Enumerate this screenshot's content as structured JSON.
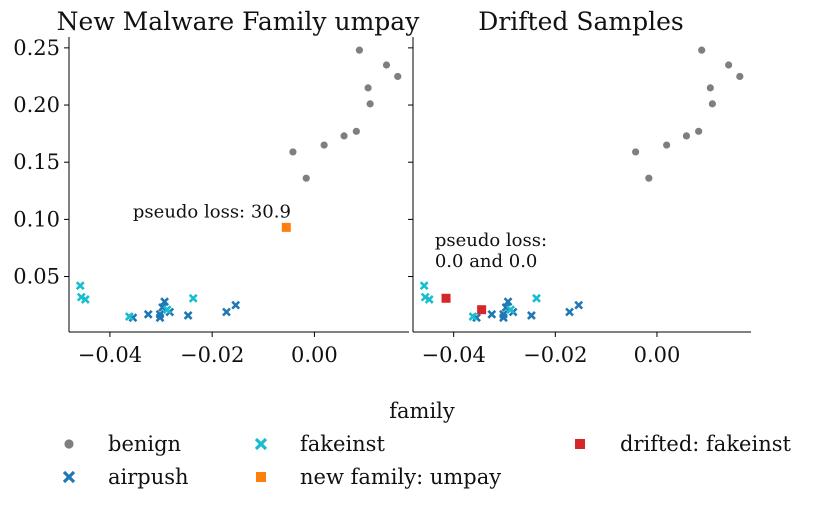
{
  "chart_data": [
    {
      "type": "scatter",
      "title": "New Malware Family umpay",
      "xlabel": "",
      "ylabel": "",
      "xlim": [
        -0.048,
        0.0185
      ],
      "ylim": [
        0.0015,
        0.2595
      ],
      "xticks": [
        "−0.04",
        "−0.02",
        "0.00"
      ],
      "xtick_values": [
        -0.04,
        -0.02,
        0.0
      ],
      "yticks": [
        "0.05",
        "0.10",
        "0.15",
        "0.20",
        "0.25"
      ],
      "ytick_values": [
        0.05,
        0.1,
        0.15,
        0.2,
        0.25
      ],
      "annotation": {
        "lines": [
          "pseudo loss: 30.9"
        ],
        "x": -0.0355,
        "y": 0.1015
      },
      "series": [
        {
          "name": "benign",
          "points": [
            [
              0.0088,
              0.248
            ],
            [
              0.0141,
              0.235
            ],
            [
              0.0163,
              0.225
            ],
            [
              0.0105,
              0.215
            ],
            [
              0.0109,
              0.201
            ],
            [
              0.0082,
              0.177
            ],
            [
              0.0058,
              0.173
            ],
            [
              0.0019,
              0.165
            ],
            [
              -0.0042,
              0.159
            ],
            [
              -0.0016,
              0.136
            ]
          ]
        },
        {
          "name": "airpush",
          "points": [
            [
              -0.0355,
              0.014
            ],
            [
              -0.0325,
              0.017
            ],
            [
              -0.0302,
              0.014
            ],
            [
              -0.0302,
              0.017
            ],
            [
              -0.0297,
              0.023
            ],
            [
              -0.0293,
              0.028
            ],
            [
              -0.0283,
              0.019
            ],
            [
              -0.0247,
              0.016
            ],
            [
              -0.0172,
              0.019
            ],
            [
              -0.0154,
              0.025
            ]
          ]
        },
        {
          "name": "fakeinst",
          "points": [
            [
              -0.0458,
              0.042
            ],
            [
              -0.0456,
              0.032
            ],
            [
              -0.0448,
              0.03
            ],
            [
              -0.0362,
              0.015
            ],
            [
              -0.0288,
              0.021
            ],
            [
              -0.0237,
              0.031
            ]
          ]
        },
        {
          "name": "new family: umpay",
          "points": [
            [
              -0.0055,
              0.093
            ]
          ]
        }
      ]
    },
    {
      "type": "scatter",
      "title": "Drifted Samples",
      "xlabel": "",
      "ylabel": "",
      "xlim": [
        -0.048,
        0.0185
      ],
      "ylim": [
        0.0015,
        0.2595
      ],
      "xticks": [
        "−0.04",
        "−0.02",
        "0.00"
      ],
      "xtick_values": [
        -0.04,
        -0.02,
        0.0
      ],
      "yticks": [],
      "ytick_values": [
        0.05,
        0.1,
        0.15,
        0.2,
        0.25
      ],
      "annotation": {
        "lines": [
          "pseudo loss:",
          "0.0 and 0.0"
        ],
        "x": -0.0437,
        "y": 0.0765
      },
      "series": [
        {
          "name": "benign",
          "points": [
            [
              0.0088,
              0.248
            ],
            [
              0.0141,
              0.235
            ],
            [
              0.0163,
              0.225
            ],
            [
              0.0105,
              0.215
            ],
            [
              0.0109,
              0.201
            ],
            [
              0.0082,
              0.177
            ],
            [
              0.0058,
              0.173
            ],
            [
              0.0019,
              0.165
            ],
            [
              -0.0042,
              0.159
            ],
            [
              -0.0016,
              0.136
            ]
          ]
        },
        {
          "name": "airpush",
          "points": [
            [
              -0.0355,
              0.014
            ],
            [
              -0.0325,
              0.017
            ],
            [
              -0.0302,
              0.014
            ],
            [
              -0.0302,
              0.017
            ],
            [
              -0.0297,
              0.023
            ],
            [
              -0.0293,
              0.028
            ],
            [
              -0.0283,
              0.019
            ],
            [
              -0.0247,
              0.016
            ],
            [
              -0.0172,
              0.019
            ],
            [
              -0.0154,
              0.025
            ]
          ]
        },
        {
          "name": "fakeinst",
          "points": [
            [
              -0.0458,
              0.042
            ],
            [
              -0.0456,
              0.032
            ],
            [
              -0.0448,
              0.03
            ],
            [
              -0.0362,
              0.015
            ],
            [
              -0.0288,
              0.021
            ],
            [
              -0.0237,
              0.031
            ]
          ]
        },
        {
          "name": "drifted: fakeinst",
          "points": [
            [
              -0.0415,
              0.031
            ],
            [
              -0.0345,
              0.021
            ]
          ]
        }
      ]
    }
  ],
  "legend": {
    "title": "family",
    "entries": [
      {
        "label": "benign",
        "marker": "circle",
        "color": "#7f7f7f"
      },
      {
        "label": "airpush",
        "marker": "x",
        "color": "#1f77b4"
      },
      {
        "label": "fakeinst",
        "marker": "x",
        "color": "#17becf"
      },
      {
        "label": "new family: umpay",
        "marker": "square",
        "color": "#ff7f0e"
      },
      {
        "label": "drifted: fakeinst",
        "marker": "square",
        "color": "#d62728"
      }
    ]
  },
  "colors": {
    "benign": "#7f7f7f",
    "airpush": "#1f77b4",
    "fakeinst": "#17becf",
    "new family: umpay": "#ff7f0e",
    "drifted: fakeinst": "#d62728"
  }
}
